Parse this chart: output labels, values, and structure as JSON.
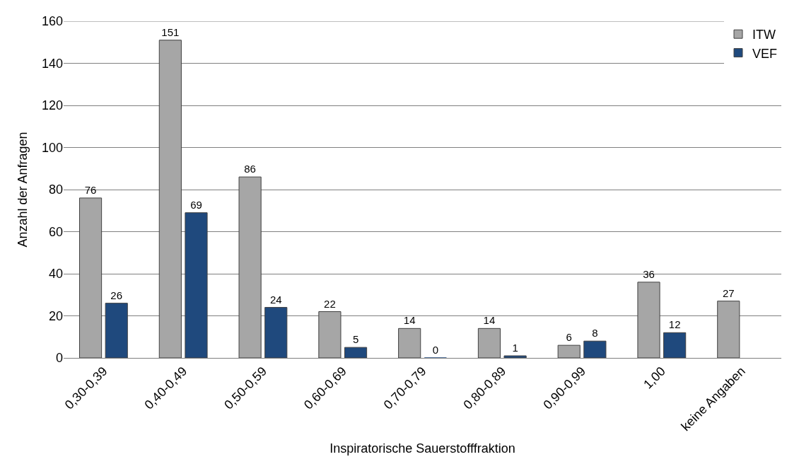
{
  "chart_data": {
    "type": "bar",
    "xlabel": "Inspiratorische Sauerstofffraktion",
    "ylabel": "Anzahl der Anfragen",
    "categories": [
      "0,30-0,39",
      "0,40-0,49",
      "0,50-0,59",
      "0,60-0,69",
      "0,70-0,79",
      "0,80-0,89",
      "0,90-0,99",
      "1,00",
      "keine Angaben"
    ],
    "series": [
      {
        "name": "ITW",
        "color": "#a6a6a6",
        "values": [
          76,
          151,
          86,
          22,
          14,
          14,
          6,
          36,
          27
        ]
      },
      {
        "name": "VEF",
        "color": "#1f497d",
        "values": [
          26,
          69,
          24,
          5,
          0,
          1,
          8,
          12,
          null
        ]
      }
    ],
    "ylim": [
      0,
      160
    ],
    "yticks": [
      0,
      20,
      40,
      60,
      80,
      100,
      120,
      140,
      160
    ],
    "grid": "y",
    "legend": "top right",
    "data_labels": true
  }
}
